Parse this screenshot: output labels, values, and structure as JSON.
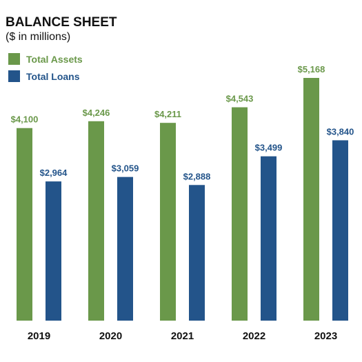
{
  "title": "BALANCE SHEET",
  "subtitle": "($ in millions)",
  "colors": {
    "assets": "#6a984a",
    "loans": "#23548a",
    "text": "#111111"
  },
  "chart_data": {
    "type": "bar",
    "title": "BALANCE SHEET",
    "subtitle": "($ in millions)",
    "categories": [
      "2019",
      "2020",
      "2021",
      "2022",
      "2023"
    ],
    "series": [
      {
        "name": "Total Assets",
        "color": "#6a984a",
        "values": [
          4100,
          4246,
          4211,
          4543,
          5168
        ],
        "labels": [
          "$4,100",
          "$4,246",
          "$4,211",
          "$4,543",
          "$5,168"
        ]
      },
      {
        "name": "Total Loans",
        "color": "#23548a",
        "values": [
          2964,
          3059,
          2888,
          3499,
          3840
        ],
        "labels": [
          "$2,964",
          "$3,059",
          "$2,888",
          "$3,499",
          "$3,840"
        ]
      }
    ],
    "ylim": [
      0,
      5168
    ],
    "legend": "top-left",
    "grid": false
  }
}
